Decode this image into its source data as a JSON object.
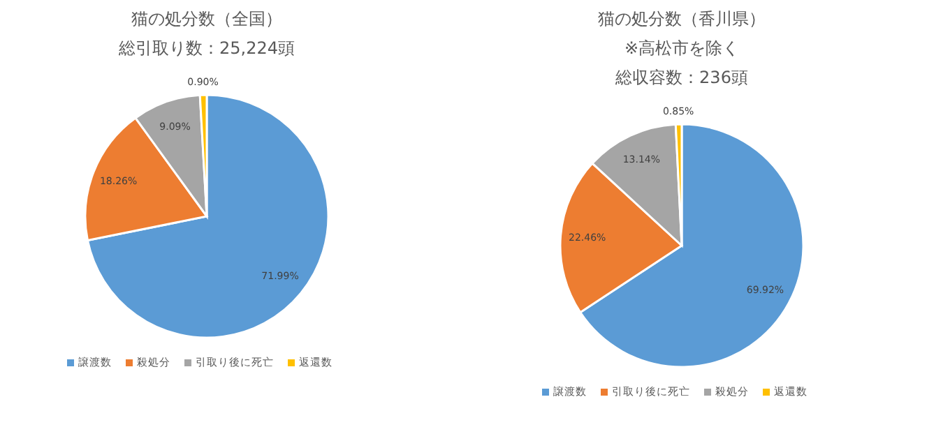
{
  "chart_data": [
    {
      "type": "pie",
      "title": "猫の処分数（全国）",
      "subtitle": "総引取り数：25,224頭",
      "categories": [
        "譲渡数",
        "殺処分",
        "引取り後に死亡",
        "返還数"
      ],
      "values": [
        71.99,
        18.26,
        9.09,
        0.9
      ],
      "value_labels": [
        "71.99%",
        "18.26%",
        "9.09%",
        "0.90%"
      ],
      "colors": [
        "#5b9bd5",
        "#ed7d31",
        "#a5a5a5",
        "#ffc000"
      ],
      "legend": "bottom"
    },
    {
      "type": "pie",
      "title": "猫の処分数（香川県）",
      "subtitle": "※高松市を除く",
      "annotations": [
        "総収容数：236頭"
      ],
      "categories": [
        "譲渡数",
        "引取り後に死亡",
        "殺処分",
        "返還数"
      ],
      "values": [
        69.92,
        22.46,
        13.14,
        0.85
      ],
      "value_labels": [
        "69.92%",
        "22.46%",
        "13.14%",
        "0.85%"
      ],
      "colors": [
        "#5b9bd5",
        "#ed7d31",
        "#a5a5a5",
        "#ffc000"
      ],
      "legend": "bottom"
    }
  ]
}
